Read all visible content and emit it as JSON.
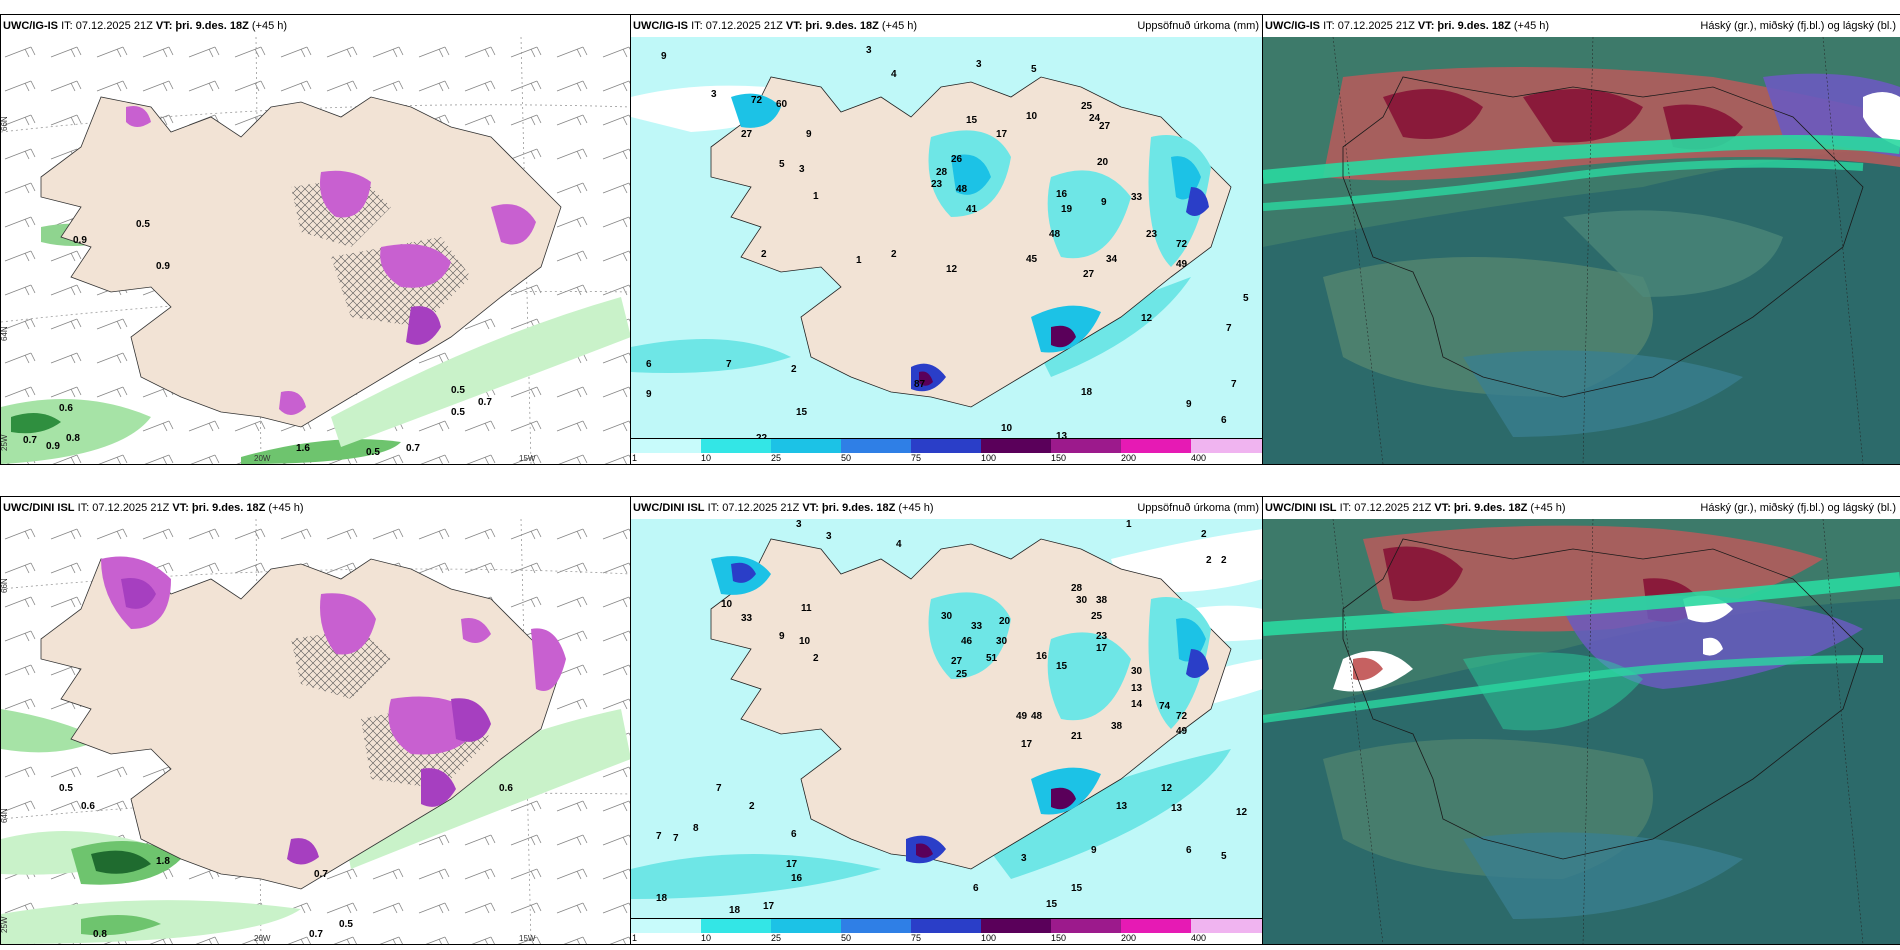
{
  "panels": [
    {
      "model": "UWC/IG-IS",
      "it": "IT: 07.12.2025 21Z",
      "vt_label": "VT:",
      "vt": "þri. 9.des. 18Z",
      "lead": "(+45 h)",
      "right": ""
    },
    {
      "model": "UWC/IG-IS",
      "it": "IT: 07.12.2025 21Z",
      "vt_label": "VT:",
      "vt": "þri. 9.des. 18Z",
      "lead": "(+45 h)",
      "right": "Uppsöfnuð úrkoma (mm)"
    },
    {
      "model": "UWC/IG-IS",
      "it": "IT: 07.12.2025 21Z",
      "vt_label": "VT:",
      "vt": "þri. 9.des. 18Z",
      "lead": "(+45 h)",
      "right": "Háský (gr.), miðský (fj.bl.) og lágský (bl.)"
    },
    {
      "model": "UWC/DINI ISL",
      "it": "IT: 07.12.2025 21Z",
      "vt_label": "VT:",
      "vt": "þri. 9.des. 18Z",
      "lead": "(+45 h)",
      "right": ""
    },
    {
      "model": "UWC/DINI ISL",
      "it": "IT: 07.12.2025 21Z",
      "vt_label": "VT:",
      "vt": "þri. 9.des. 18Z",
      "lead": "(+45 h)",
      "right": "Uppsöfnuð úrkoma (mm)"
    },
    {
      "model": "UWC/DINI ISL",
      "it": "IT: 07.12.2025 21Z",
      "vt_label": "VT:",
      "vt": "þri. 9.des. 18Z",
      "lead": "(+45 h)",
      "right": "Háský (gr.), miðský (fj.bl.) og lágský (bl.)"
    }
  ],
  "colorbar": {
    "ticks": [
      "1",
      "10",
      "25",
      "50",
      "75",
      "100",
      "150",
      "200",
      "400"
    ],
    "colors": [
      "#c8fbfb",
      "#33e6e6",
      "#1cc2e6",
      "#2f7fe6",
      "#2a3ec8",
      "#5a005a",
      "#9c1a8c",
      "#e61ab4",
      "#f0b4f0"
    ]
  },
  "grid_labels": {
    "lon": [
      "20W",
      "15W"
    ],
    "lat": [
      "66N",
      "64N",
      "25W"
    ]
  },
  "map_colors": {
    "land": "#f2e3d5",
    "sea_precip": "#bff8f8",
    "snow": "#c860d0",
    "rain_green": "#7fd17f",
    "cloud_base": "#2c6a6a"
  },
  "left_labels": {
    "top": [
      "0.9",
      "0.5",
      "0.9",
      "0.5",
      "0.6",
      "0.7",
      "0.9",
      "0.8",
      "0.5",
      "0.7",
      "0.5",
      "0.7",
      "1.6"
    ],
    "bottom": [
      "0.5",
      "0.6",
      "1.8",
      "0.8",
      "0.7",
      "0.5",
      "0.6",
      "0.7"
    ]
  },
  "mid_labels": {
    "top": [
      "9",
      "3",
      "3",
      "4",
      "3",
      "5",
      "72",
      "60",
      "27",
      "9",
      "5",
      "3",
      "1",
      "2",
      "6",
      "9",
      "7",
      "2",
      "15",
      "22",
      "87",
      "10",
      "13",
      "18",
      "9",
      "6",
      "7",
      "5",
      "3",
      "3",
      "10",
      "25",
      "24",
      "27",
      "20",
      "15",
      "17",
      "26",
      "23",
      "28",
      "48",
      "41",
      "16",
      "19",
      "9",
      "33",
      "48",
      "45",
      "12",
      "23",
      "27",
      "34",
      "72",
      "49",
      "12",
      "1",
      "2",
      "7"
    ],
    "bottom": [
      "3",
      "3",
      "4",
      "1",
      "2",
      "2",
      "2",
      "11",
      "33",
      "10",
      "9",
      "10",
      "2",
      "30",
      "33",
      "46",
      "27",
      "25",
      "20",
      "30",
      "51",
      "49",
      "16",
      "15",
      "28",
      "30",
      "38",
      "25",
      "23",
      "17",
      "30",
      "13",
      "14",
      "74",
      "72",
      "49",
      "38",
      "21",
      "17",
      "48",
      "12",
      "13",
      "13",
      "12",
      "9",
      "6",
      "5",
      "7",
      "7",
      "8",
      "7",
      "6",
      "17",
      "16",
      "18",
      "17",
      "18",
      "3",
      "6",
      "15",
      "15",
      "2"
    ]
  }
}
